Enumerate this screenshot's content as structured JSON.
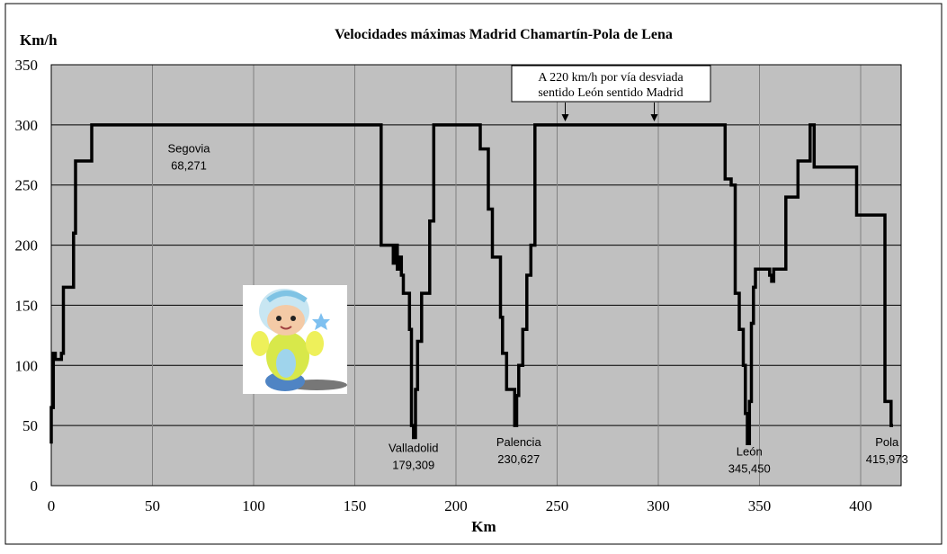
{
  "chart_data": {
    "type": "line",
    "title": "Velocidades máximas Madrid Chamartín-Pola de Lena",
    "xlabel": "Km",
    "ylabel": "Km/h",
    "xlim": [
      0,
      420
    ],
    "ylim": [
      0,
      350
    ],
    "xticks": [
      0,
      50,
      100,
      150,
      200,
      250,
      300,
      350,
      400
    ],
    "yticks": [
      0,
      50,
      100,
      150,
      200,
      250,
      300,
      350
    ],
    "grid": true,
    "plot_background": "#c0c0c0",
    "line_color": "#000000",
    "series": [
      {
        "x": [
          0,
          0,
          1,
          1,
          2,
          2,
          5,
          5,
          6,
          6,
          7,
          7,
          11,
          11,
          12,
          12,
          14,
          14,
          20,
          20,
          163,
          163,
          169,
          169,
          170,
          170,
          171,
          171,
          172,
          172,
          173,
          173,
          174,
          174,
          176,
          176,
          177,
          177,
          178,
          178,
          179,
          179,
          180,
          180,
          181,
          181,
          183,
          183,
          187,
          187,
          189,
          189,
          212,
          212,
          215,
          215,
          216,
          216,
          218,
          218,
          222,
          222,
          223,
          223,
          225,
          225,
          228,
          228,
          229,
          229,
          230,
          230,
          231,
          231,
          233,
          233,
          235,
          235,
          237,
          237,
          239,
          239,
          333,
          333,
          336,
          336,
          338,
          338,
          340,
          340,
          342,
          342,
          343,
          343,
          344,
          344,
          345,
          345,
          346,
          346,
          347,
          347,
          348,
          348,
          355,
          355,
          356,
          356,
          357,
          357,
          363,
          363,
          369,
          369,
          375,
          375,
          377,
          377,
          396,
          396,
          398,
          398,
          410,
          410,
          412,
          412,
          415,
          415,
          416
        ],
        "y": [
          35,
          65,
          65,
          110,
          110,
          105,
          105,
          110,
          110,
          165,
          165,
          165,
          165,
          210,
          210,
          270,
          270,
          270,
          270,
          300,
          300,
          200,
          200,
          185,
          185,
          200,
          200,
          180,
          180,
          190,
          190,
          175,
          175,
          160,
          160,
          160,
          160,
          130,
          130,
          50,
          50,
          40,
          40,
          80,
          80,
          120,
          120,
          160,
          160,
          220,
          220,
          300,
          300,
          280,
          280,
          280,
          280,
          230,
          230,
          190,
          190,
          140,
          140,
          110,
          110,
          80,
          80,
          80,
          80,
          50,
          50,
          75,
          75,
          100,
          100,
          130,
          130,
          175,
          175,
          200,
          200,
          300,
          300,
          255,
          255,
          250,
          250,
          160,
          160,
          130,
          130,
          100,
          100,
          60,
          60,
          35,
          35,
          70,
          70,
          135,
          135,
          165,
          165,
          180,
          180,
          175,
          175,
          170,
          170,
          180,
          180,
          240,
          240,
          270,
          270,
          300,
          300,
          265,
          265,
          265,
          265,
          225,
          225,
          225,
          225,
          70,
          70,
          50,
          50
        ]
      }
    ],
    "annotations": [
      {
        "lines": [
          "Segovia",
          "68,271"
        ],
        "x": 68,
        "y": 277
      },
      {
        "lines": [
          "Valladolid",
          "179,309"
        ],
        "x": 179,
        "y": 28
      },
      {
        "lines": [
          "Palencia",
          "230,627"
        ],
        "x": 231,
        "y": 33
      },
      {
        "lines": [
          "León",
          "345,450"
        ],
        "x": 345,
        "y": 25
      },
      {
        "lines": [
          "Pola",
          "415,973"
        ],
        "x": 413,
        "y": 33
      }
    ],
    "callout": {
      "lines": [
        "A 220 km/h por vía desviada",
        "sentido León sentido Madrid"
      ],
      "arrow_targets": [
        254,
        298
      ]
    }
  }
}
